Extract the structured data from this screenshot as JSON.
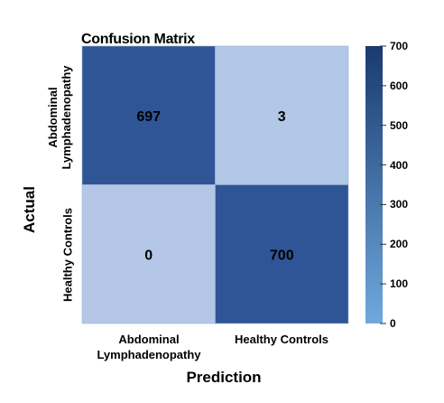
{
  "chart_data": {
    "type": "heatmap",
    "title": "Confusion Matrix",
    "xlabel": "Prediction",
    "ylabel": "Actual",
    "x_categories": [
      "Abdominal\nLymphadenopathy",
      "Healthy Controls"
    ],
    "y_categories": [
      "Abdominal\nLymphadenopathy",
      "Healthy Controls"
    ],
    "values": [
      [
        697,
        3
      ],
      [
        0,
        700
      ]
    ],
    "cell_labels": [
      [
        "697",
        "3"
      ],
      [
        "0",
        "700"
      ]
    ],
    "colorbar": {
      "range": [
        0,
        700
      ],
      "ticks": [
        "0",
        "100",
        "200",
        "300",
        "400",
        "500",
        "600",
        "700"
      ],
      "colors": [
        "#6fa9dc",
        "#1a3a70"
      ]
    },
    "cell_colors": {
      "low": "#b4c7e7",
      "high": "#2f5597"
    },
    "grid": false
  }
}
